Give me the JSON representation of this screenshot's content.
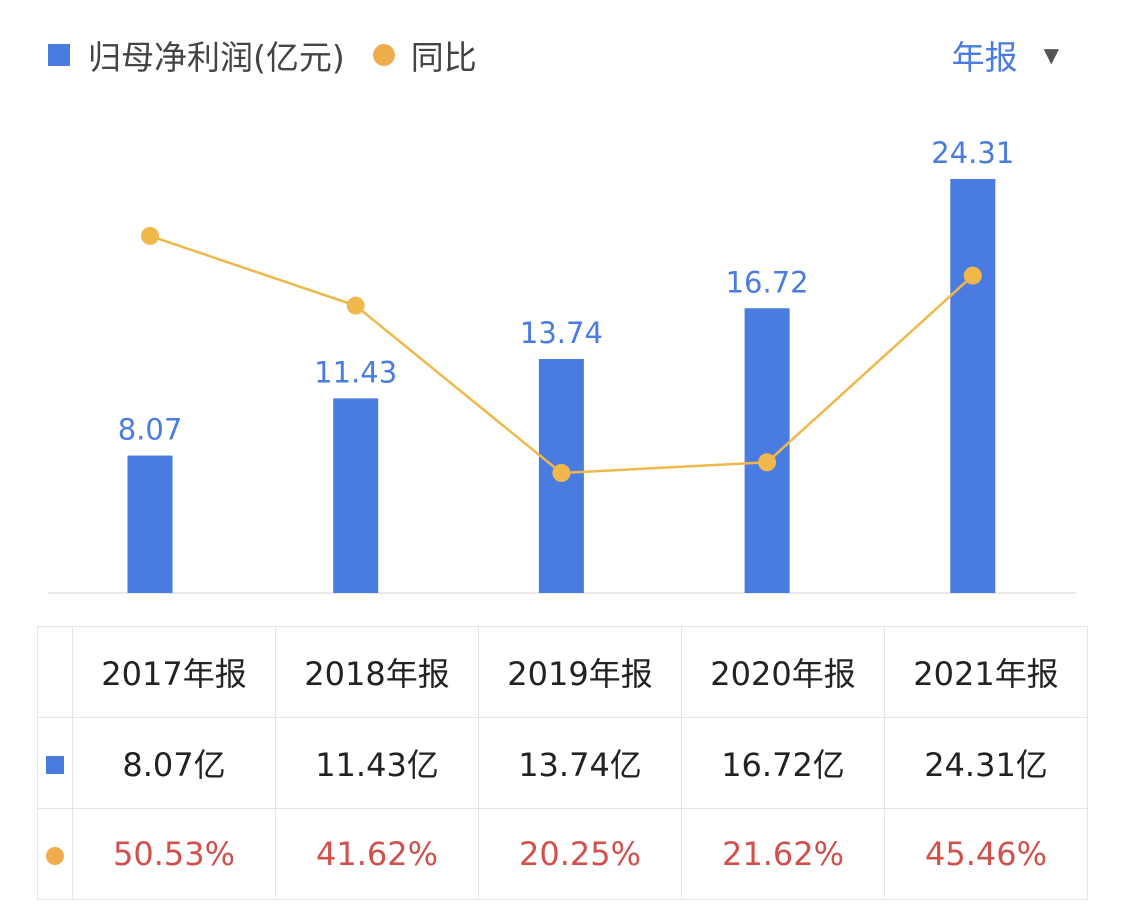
{
  "legend": {
    "bar_label": "归母净利润(亿元)",
    "line_label": "同比"
  },
  "period_selector": {
    "label": "年报",
    "caret": "▼"
  },
  "colors": {
    "bar": "#4a7be0",
    "line": "#f0b84a",
    "growth_text": "#d0504b"
  },
  "chart_data": {
    "type": "bar+line",
    "categories": [
      "2017年报",
      "2018年报",
      "2019年报",
      "2020年报",
      "2021年报"
    ],
    "series": [
      {
        "name": "归母净利润(亿元)",
        "type": "bar",
        "values": [
          8.07,
          11.43,
          13.74,
          16.72,
          24.31
        ],
        "data_labels": [
          "8.07",
          "11.43",
          "13.74",
          "16.72",
          "24.31"
        ]
      },
      {
        "name": "同比",
        "type": "line",
        "values": [
          50.53,
          41.62,
          20.25,
          21.62,
          45.46
        ]
      }
    ],
    "grid": false
  },
  "table": {
    "headers": [
      "2017年报",
      "2018年报",
      "2019年报",
      "2020年报",
      "2021年报"
    ],
    "profit_row": [
      "8.07亿",
      "11.43亿",
      "13.74亿",
      "16.72亿",
      "24.31亿"
    ],
    "growth_row": [
      "50.53%",
      "41.62%",
      "20.25%",
      "21.62%",
      "45.46%"
    ]
  }
}
